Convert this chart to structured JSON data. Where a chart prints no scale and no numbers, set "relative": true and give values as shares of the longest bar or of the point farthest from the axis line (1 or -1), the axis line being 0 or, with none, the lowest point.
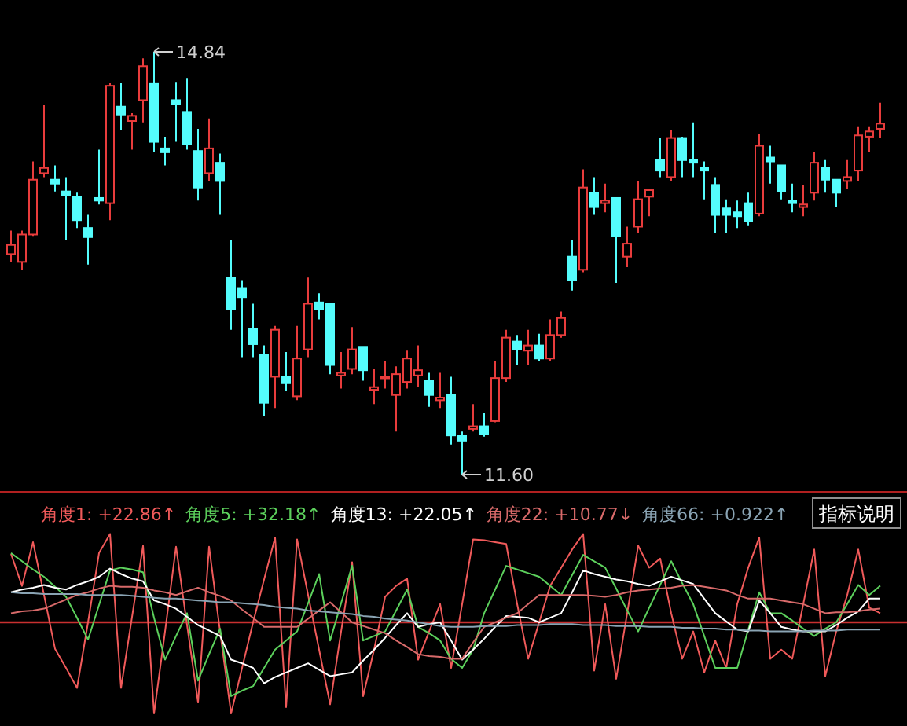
{
  "chart_data": [
    {
      "type": "candlestick",
      "categories": [
        null,
        null,
        null,
        null,
        null,
        null,
        null,
        null,
        null,
        null,
        null,
        null,
        null,
        null,
        null,
        null,
        null,
        null,
        null,
        null,
        null,
        null,
        null,
        null,
        null,
        null,
        null,
        null,
        null,
        null,
        null,
        null,
        null,
        null,
        null,
        null,
        null,
        null,
        null,
        null,
        null,
        null,
        null,
        null,
        null,
        null,
        null,
        null,
        null,
        null,
        null,
        null,
        null,
        null,
        null,
        null,
        null,
        null,
        null,
        null,
        null,
        null,
        null,
        null,
        null,
        null,
        null,
        null,
        null,
        null,
        null,
        null,
        null,
        null,
        null,
        null,
        null,
        null,
        null,
        null
      ],
      "ohlc": [
        [
          13.29,
          13.47,
          13.23,
          13.36
        ],
        [
          13.23,
          13.47,
          13.17,
          13.44
        ],
        [
          13.44,
          14.0,
          13.43,
          13.86
        ],
        [
          13.91,
          14.43,
          13.88,
          13.95
        ],
        [
          13.86,
          13.97,
          13.77,
          13.83
        ],
        [
          13.77,
          13.88,
          13.4,
          13.74
        ],
        [
          13.73,
          13.76,
          13.49,
          13.55
        ],
        [
          13.49,
          13.59,
          13.21,
          13.42
        ],
        [
          13.72,
          14.09,
          13.67,
          13.7
        ],
        [
          13.68,
          14.6,
          13.55,
          14.58
        ],
        [
          14.42,
          14.6,
          14.24,
          14.36
        ],
        [
          14.31,
          14.37,
          14.09,
          14.35
        ],
        [
          14.47,
          14.79,
          14.3,
          14.73
        ],
        [
          14.6,
          14.84,
          14.07,
          14.15
        ],
        [
          14.1,
          14.19,
          13.97,
          14.07
        ],
        [
          14.47,
          14.61,
          14.15,
          14.44
        ],
        [
          14.38,
          14.64,
          14.09,
          14.13
        ],
        [
          14.08,
          14.25,
          13.7,
          13.8
        ],
        [
          13.91,
          14.33,
          13.85,
          14.1
        ],
        [
          13.99,
          14.06,
          13.59,
          13.85
        ],
        [
          13.11,
          13.4,
          12.71,
          12.87
        ],
        [
          13.03,
          13.09,
          12.5,
          12.96
        ],
        [
          12.72,
          12.91,
          12.5,
          12.6
        ],
        [
          12.52,
          12.59,
          12.05,
          12.15
        ],
        [
          12.35,
          12.74,
          12.11,
          12.71
        ],
        [
          12.35,
          12.54,
          12.24,
          12.3
        ],
        [
          12.2,
          12.74,
          12.17,
          12.49
        ],
        [
          12.56,
          13.11,
          12.5,
          12.91
        ],
        [
          12.92,
          12.99,
          12.79,
          12.87
        ],
        [
          12.91,
          12.91,
          12.37,
          12.44
        ],
        [
          12.36,
          12.54,
          12.26,
          12.38
        ],
        [
          12.41,
          12.73,
          12.37,
          12.56
        ],
        [
          12.58,
          12.58,
          12.32,
          12.4
        ],
        [
          12.25,
          12.41,
          12.14,
          12.27
        ],
        [
          12.34,
          12.47,
          12.26,
          12.35
        ],
        [
          12.21,
          12.43,
          11.93,
          12.37
        ],
        [
          12.31,
          12.55,
          12.26,
          12.49
        ],
        [
          12.36,
          12.59,
          12.27,
          12.4
        ],
        [
          12.32,
          12.38,
          12.12,
          12.21
        ],
        [
          12.17,
          12.38,
          12.11,
          12.19
        ],
        [
          12.21,
          12.35,
          11.83,
          11.9
        ],
        [
          11.9,
          11.93,
          11.6,
          11.86
        ],
        [
          11.95,
          12.14,
          11.93,
          11.97
        ],
        [
          11.97,
          12.07,
          11.89,
          11.91
        ],
        [
          12.01,
          12.47,
          12.0,
          12.34
        ],
        [
          12.34,
          12.71,
          12.31,
          12.65
        ],
        [
          12.62,
          12.67,
          12.44,
          12.56
        ],
        [
          12.55,
          12.71,
          12.44,
          12.59
        ],
        [
          12.59,
          12.68,
          12.47,
          12.49
        ],
        [
          12.49,
          12.79,
          12.47,
          12.67
        ],
        [
          12.67,
          12.85,
          12.65,
          12.8
        ],
        [
          13.27,
          13.4,
          13.01,
          13.09
        ],
        [
          13.17,
          13.94,
          13.15,
          13.8
        ],
        [
          13.76,
          13.88,
          13.59,
          13.65
        ],
        [
          13.68,
          13.83,
          13.61,
          13.7
        ],
        [
          13.72,
          13.72,
          13.07,
          13.43
        ],
        [
          13.27,
          13.5,
          13.19,
          13.37
        ],
        [
          13.5,
          13.85,
          13.45,
          13.71
        ],
        [
          13.73,
          13.79,
          13.58,
          13.78
        ],
        [
          14.01,
          14.18,
          13.88,
          13.93
        ],
        [
          13.88,
          14.24,
          13.85,
          14.18
        ],
        [
          14.18,
          14.19,
          13.88,
          14.01
        ],
        [
          14.01,
          14.3,
          13.88,
          13.99
        ],
        [
          13.95,
          14.0,
          13.71,
          13.93
        ],
        [
          13.82,
          13.88,
          13.45,
          13.59
        ],
        [
          13.64,
          13.71,
          13.45,
          13.59
        ],
        [
          13.61,
          13.7,
          13.49,
          13.58
        ],
        [
          13.68,
          13.76,
          13.51,
          13.54
        ],
        [
          13.6,
          14.21,
          13.58,
          14.12
        ],
        [
          14.03,
          14.12,
          13.83,
          14.0
        ],
        [
          13.97,
          13.97,
          13.71,
          13.77
        ],
        [
          13.7,
          13.83,
          13.61,
          13.68
        ],
        [
          13.65,
          13.82,
          13.58,
          13.67
        ],
        [
          13.76,
          14.07,
          13.7,
          13.99
        ],
        [
          13.95,
          14.01,
          13.76,
          13.86
        ],
        [
          13.86,
          13.86,
          13.65,
          13.76
        ],
        [
          13.85,
          14.01,
          13.79,
          13.88
        ],
        [
          13.93,
          14.27,
          13.85,
          14.2
        ],
        [
          14.19,
          14.27,
          14.07,
          14.23
        ],
        [
          14.25,
          14.45,
          14.18,
          14.29
        ]
      ],
      "colors": [
        "#e83c3c",
        "#e83c3c",
        "#e83c3c",
        "#e83c3c",
        "#54fcfc",
        "#54fcfc",
        "#54fcfc",
        "#54fcfc",
        "#54fcfc",
        "#e83c3c",
        "#54fcfc",
        "#e83c3c",
        "#e83c3c",
        "#54fcfc",
        "#54fcfc",
        "#54fcfc",
        "#54fcfc",
        "#54fcfc",
        "#e83c3c",
        "#54fcfc",
        "#54fcfc",
        "#54fcfc",
        "#54fcfc",
        "#54fcfc",
        "#e83c3c",
        "#54fcfc",
        "#e83c3c",
        "#e83c3c",
        "#54fcfc",
        "#54fcfc",
        "#e83c3c",
        "#e83c3c",
        "#54fcfc",
        "#e83c3c",
        "#e83c3c",
        "#e83c3c",
        "#e83c3c",
        "#e83c3c",
        "#54fcfc",
        "#e83c3c",
        "#54fcfc",
        "#54fcfc",
        "#e83c3c",
        "#54fcfc",
        "#e83c3c",
        "#e83c3c",
        "#54fcfc",
        "#e83c3c",
        "#54fcfc",
        "#e83c3c",
        "#e83c3c",
        "#54fcfc",
        "#e83c3c",
        "#54fcfc",
        "#e83c3c",
        "#54fcfc",
        "#e83c3c",
        "#e83c3c",
        "#e83c3c",
        "#54fcfc",
        "#e83c3c",
        "#54fcfc",
        "#54fcfc",
        "#54fcfc",
        "#54fcfc",
        "#54fcfc",
        "#54fcfc",
        "#54fcfc",
        "#e83c3c",
        "#54fcfc",
        "#54fcfc",
        "#54fcfc",
        "#e83c3c",
        "#e83c3c",
        "#54fcfc",
        "#54fcfc",
        "#e83c3c",
        "#e83c3c",
        "#e83c3c",
        "#e83c3c"
      ],
      "annotations": [
        "14.84",
        "11.60"
      ]
    },
    {
      "type": "line",
      "relative": true,
      "legend": "top left",
      "categories": [
        null,
        null,
        null,
        null,
        null,
        null,
        null,
        null,
        null,
        null,
        null,
        null,
        null,
        null,
        null,
        null,
        null,
        null,
        null,
        null,
        null,
        null,
        null,
        null,
        null,
        null,
        null,
        null,
        null,
        null,
        null,
        null,
        null,
        null,
        null,
        null,
        null,
        null,
        null,
        null,
        null,
        null,
        null,
        null,
        null,
        null,
        null,
        null,
        null,
        null,
        null,
        null,
        null,
        null,
        null,
        null,
        null,
        null,
        null,
        null,
        null,
        null,
        null,
        null,
        null,
        null,
        null,
        null,
        null,
        null,
        null,
        null,
        null,
        null,
        null,
        null,
        null,
        null,
        null,
        null
      ],
      "series": [
        {
          "name": "角度1: +22.86↑",
          "color": "#f05a5a",
          "values": [
            0.75,
            0.4,
            0.88,
            0.3,
            -0.29,
            -0.5,
            -0.72,
            0.0,
            0.76,
            0.97,
            -0.72,
            0.06,
            0.84,
            -1.0,
            -0.1,
            0.83,
            -0.03,
            -0.88,
            0.83,
            -0.1,
            -1.0,
            -0.5,
            0.0,
            0.47,
            0.93,
            -0.93,
            0.91,
            0.3,
            -0.3,
            -0.9,
            -0.1,
            0.66,
            -0.81,
            -0.3,
            0.28,
            0.4,
            0.48,
            -0.41,
            -0.1,
            0.2,
            -0.5,
            0.2,
            0.91,
            0.9,
            0.88,
            0.86,
            0.2,
            -0.4,
            0.0,
            0.4,
            0.6,
            0.8,
            0.97,
            -0.53,
            0.2,
            -0.62,
            0.1,
            0.84,
            0.6,
            0.7,
            0.1,
            -0.4,
            -0.1,
            -0.55,
            -0.2,
            -0.5,
            0.2,
            0.6,
            0.93,
            -0.4,
            -0.3,
            -0.4,
            0.2,
            0.8,
            -0.59,
            -0.1,
            0.3,
            0.8,
            0.16,
            0.1
          ]
        },
        {
          "name": "角度5: +32.18↑",
          "color": "#5cd05c",
          "values": [
            0.76,
            0.67,
            0.58,
            0.5,
            0.39,
            0.28,
            0.05,
            -0.19,
            0.19,
            0.57,
            0.6,
            0.58,
            0.55,
            0.05,
            -0.41,
            -0.15,
            0.1,
            -0.64,
            -0.35,
            -0.07,
            -0.81,
            -0.75,
            -0.7,
            -0.5,
            -0.3,
            -0.2,
            -0.1,
            0.21,
            0.53,
            -0.2,
            0.21,
            0.62,
            -0.2,
            -0.15,
            -0.1,
            0.13,
            0.36,
            -0.05,
            -0.12,
            -0.2,
            -0.4,
            -0.5,
            -0.3,
            0.1,
            0.36,
            0.62,
            0.58,
            0.54,
            0.5,
            0.4,
            0.3,
            0.52,
            0.74,
            0.67,
            0.6,
            0.37,
            0.13,
            -0.1,
            0.16,
            0.41,
            0.67,
            0.43,
            0.2,
            -0.15,
            -0.5,
            -0.5,
            -0.5,
            -0.08,
            0.33,
            0.1,
            0.1,
            0.02,
            -0.07,
            -0.15,
            -0.07,
            0.0,
            0.2,
            0.41,
            0.3,
            0.4
          ]
        },
        {
          "name": "角度13: +22.05↑",
          "color": "#ffffff",
          "values": [
            0.33,
            0.36,
            0.38,
            0.41,
            0.38,
            0.36,
            0.41,
            0.45,
            0.5,
            0.59,
            0.53,
            0.48,
            0.45,
            0.24,
            0.2,
            0.15,
            0.06,
            -0.03,
            -0.09,
            -0.15,
            -0.41,
            -0.45,
            -0.5,
            -0.67,
            -0.6,
            -0.55,
            -0.5,
            -0.45,
            -0.52,
            -0.59,
            -0.57,
            -0.55,
            -0.42,
            -0.3,
            -0.17,
            -0.03,
            0.1,
            -0.05,
            -0.02,
            0.0,
            -0.2,
            -0.41,
            -0.3,
            -0.18,
            -0.05,
            0.07,
            0.06,
            0.05,
            0.0,
            0.05,
            0.1,
            0.33,
            0.57,
            0.53,
            0.5,
            0.47,
            0.45,
            0.42,
            0.4,
            0.45,
            0.5,
            0.46,
            0.42,
            0.26,
            0.1,
            0.01,
            -0.08,
            -0.1,
            0.24,
            0.1,
            -0.05,
            -0.08,
            -0.1,
            -0.1,
            -0.1,
            -0.03,
            0.05,
            0.12,
            0.26,
            0.26
          ]
        },
        {
          "name": "角度22: +10.77↓",
          "color": "#d86a6a",
          "values": [
            0.1,
            0.12,
            0.13,
            0.15,
            0.2,
            0.25,
            0.3,
            0.33,
            0.37,
            0.4,
            0.39,
            0.39,
            0.38,
            0.35,
            0.33,
            0.3,
            0.34,
            0.38,
            0.33,
            0.29,
            0.24,
            0.14,
            0.05,
            -0.05,
            -0.05,
            -0.05,
            -0.05,
            0.04,
            0.13,
            0.22,
            0.11,
            0.0,
            -0.04,
            -0.08,
            -0.12,
            -0.2,
            -0.27,
            -0.35,
            -0.37,
            -0.38,
            -0.4,
            -0.4,
            -0.22,
            -0.05,
            0.0,
            0.05,
            0.1,
            0.2,
            0.3,
            0.3,
            0.3,
            0.3,
            0.3,
            0.29,
            0.28,
            0.3,
            0.33,
            0.35,
            0.36,
            0.37,
            0.38,
            0.4,
            0.41,
            0.39,
            0.37,
            0.35,
            0.3,
            0.26,
            0.26,
            0.26,
            0.24,
            0.22,
            0.2,
            0.15,
            0.1,
            0.11,
            0.11,
            0.12,
            0.14,
            0.15
          ]
        },
        {
          "name": "角度66: +0.922↑",
          "color": "#8aa4b4",
          "values": [
            0.33,
            0.32,
            0.32,
            0.31,
            0.31,
            0.31,
            0.31,
            0.3,
            0.3,
            0.3,
            0.3,
            0.29,
            0.28,
            0.27,
            0.26,
            0.26,
            0.25,
            0.24,
            0.23,
            0.22,
            0.22,
            0.21,
            0.2,
            0.19,
            0.17,
            0.16,
            0.15,
            0.13,
            0.12,
            0.11,
            0.1,
            0.09,
            0.07,
            0.06,
            0.04,
            0.03,
            0.02,
            0.0,
            -0.02,
            -0.04,
            -0.05,
            -0.05,
            -0.05,
            -0.04,
            -0.04,
            -0.04,
            -0.03,
            -0.03,
            -0.03,
            -0.02,
            -0.02,
            -0.02,
            -0.03,
            -0.03,
            -0.03,
            -0.04,
            -0.04,
            -0.04,
            -0.05,
            -0.05,
            -0.05,
            -0.06,
            -0.06,
            -0.07,
            -0.07,
            -0.08,
            -0.08,
            -0.09,
            -0.09,
            -0.1,
            -0.1,
            -0.1,
            -0.1,
            -0.09,
            -0.09,
            -0.09,
            -0.08,
            -0.08,
            -0.08,
            -0.08
          ]
        }
      ],
      "ref_lines": [
        {
          "axis": "y",
          "value": 0,
          "color": "#c83030"
        }
      ],
      "annotations": [
        "指标说明"
      ]
    }
  ]
}
